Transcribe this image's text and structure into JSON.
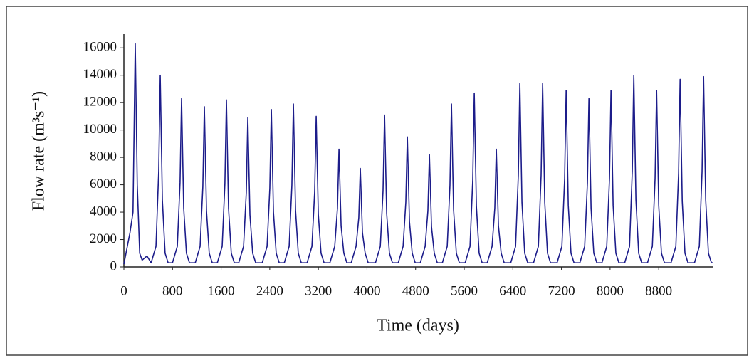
{
  "chart_data": {
    "type": "line",
    "xlabel": "Time (days)",
    "ylabel": "Flow rate (m³s⁻¹)",
    "xlim": [
      0,
      9700
    ],
    "ylim": [
      0,
      17000
    ],
    "xticks": [
      0,
      800,
      1600,
      2400,
      3200,
      4000,
      4800,
      5600,
      6400,
      7200,
      8000,
      8800
    ],
    "yticks": [
      0,
      2000,
      4000,
      6000,
      8000,
      10000,
      12000,
      14000,
      16000
    ],
    "grid": false,
    "x": [
      0,
      100,
      150,
      187,
      220,
      260,
      300,
      380,
      448,
      528,
      573,
      598,
      633,
      678,
      728,
      799,
      879,
      924,
      949,
      984,
      1029,
      1079,
      1174,
      1254,
      1299,
      1324,
      1359,
      1404,
      1454,
      1537,
      1617,
      1662,
      1687,
      1722,
      1767,
      1817,
      1889,
      1969,
      2014,
      2039,
      2074,
      2119,
      2169,
      2276,
      2356,
      2401,
      2426,
      2461,
      2506,
      2556,
      2639,
      2719,
      2764,
      2789,
      2824,
      2869,
      2919,
      3014,
      3094,
      3139,
      3164,
      3199,
      3244,
      3294,
      3389,
      3469,
      3514,
      3539,
      3574,
      3619,
      3669,
      3740,
      3820,
      3865,
      3890,
      3925,
      3970,
      4020,
      4139,
      4219,
      4264,
      4289,
      4324,
      4369,
      4419,
      4514,
      4594,
      4639,
      4664,
      4699,
      4744,
      4794,
      4877,
      4957,
      5002,
      5027,
      5062,
      5107,
      5157,
      5240,
      5320,
      5365,
      5390,
      5425,
      5470,
      5520,
      5615,
      5695,
      5740,
      5765,
      5800,
      5845,
      5895,
      5978,
      6058,
      6103,
      6128,
      6163,
      6208,
      6258,
      6365,
      6445,
      6490,
      6515,
      6550,
      6595,
      6645,
      6740,
      6820,
      6865,
      6890,
      6925,
      6970,
      7020,
      7127,
      7207,
      7252,
      7277,
      7312,
      7357,
      7407,
      7502,
      7582,
      7627,
      7652,
      7687,
      7732,
      7782,
      7865,
      7945,
      7990,
      8015,
      8050,
      8095,
      8145,
      8240,
      8320,
      8365,
      8390,
      8425,
      8470,
      8520,
      8615,
      8695,
      8740,
      8765,
      8800,
      8845,
      8895,
      9002,
      9082,
      9127,
      9152,
      9187,
      9232,
      9282,
      9388,
      9468,
      9513,
      9538,
      9573,
      9618,
      9668,
      9700
    ],
    "series": [
      {
        "color": "#1c1c8a",
        "values": [
          200,
          2500,
          4000,
          16300,
          6000,
          1000,
          500,
          800,
          300,
          1500,
          7000,
          14000,
          4900,
          1000,
          300,
          300,
          1500,
          6150,
          12300,
          4300,
          1000,
          300,
          300,
          1500,
          5850,
          11700,
          4100,
          1000,
          300,
          300,
          1500,
          6100,
          12200,
          4270,
          1000,
          300,
          300,
          1500,
          5450,
          10900,
          3800,
          1000,
          300,
          300,
          1500,
          5750,
          11500,
          4000,
          1000,
          300,
          300,
          1500,
          5950,
          11900,
          4170,
          1000,
          300,
          300,
          1500,
          5500,
          11000,
          3850,
          1000,
          300,
          300,
          1500,
          4300,
          8600,
          3000,
          1000,
          300,
          300,
          1500,
          3600,
          7200,
          2500,
          1000,
          300,
          300,
          1500,
          5550,
          11100,
          3900,
          1000,
          300,
          300,
          1500,
          4750,
          9500,
          3300,
          1000,
          300,
          300,
          1500,
          4100,
          8200,
          2900,
          1000,
          300,
          300,
          1500,
          5950,
          11900,
          4170,
          1000,
          300,
          300,
          1500,
          6350,
          12700,
          4450,
          1000,
          300,
          300,
          1500,
          4300,
          8600,
          3000,
          1000,
          300,
          300,
          1500,
          6700,
          13400,
          4700,
          1000,
          300,
          300,
          1500,
          6700,
          13400,
          4700,
          1000,
          300,
          300,
          1500,
          6450,
          12900,
          4500,
          1000,
          300,
          300,
          1500,
          6150,
          12300,
          4300,
          1000,
          300,
          300,
          1500,
          6450,
          12900,
          4500,
          1000,
          300,
          300,
          1500,
          7000,
          14000,
          4900,
          1000,
          300,
          300,
          1500,
          6450,
          12900,
          4500,
          1000,
          300,
          300,
          1500,
          6850,
          13700,
          4800,
          1000,
          300,
          300,
          1500,
          6950,
          13900,
          4900,
          1000,
          300,
          300
        ]
      }
    ]
  }
}
